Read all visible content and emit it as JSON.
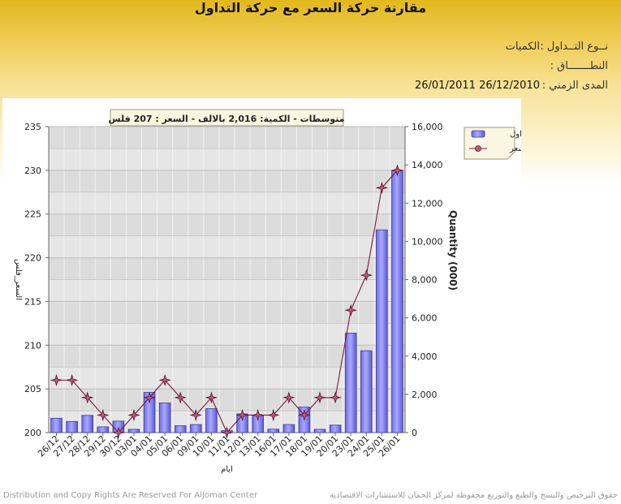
{
  "page": {
    "title": "مقارنة حركة السعر مع حركة التداول",
    "info": [
      {
        "key": "نــوع التــداول :",
        "value": "الكميات"
      },
      {
        "key": "النطـــــــاق :",
        "value": ""
      },
      {
        "key": "المدى الزمني :",
        "value": "26/12/2010 26/01/2011"
      }
    ],
    "footer_left": "Distribution and Copy Rights Are Reserved For AlJoman Center",
    "footer_right": "حقوق الترخيص والنسخ والطبع والتوزيع محفوظة لمركز الجمان للاستشارات الاقتصادية"
  },
  "chart_data": {
    "type": "bar",
    "annotation": "متوسطات - الكمية: 2,016 بالالف  - السعر : 207 فلس",
    "categories": [
      "26/12",
      "27/12",
      "28/12",
      "29/12",
      "30/12",
      "03/01",
      "04/01",
      "05/01",
      "06/01",
      "09/01",
      "10/01",
      "11/01",
      "12/01",
      "13/01",
      "16/01",
      "17/01",
      "18/01",
      "19/01",
      "20/01",
      "23/01",
      "24/01",
      "25/01",
      "26/01"
    ],
    "xlabel": "ايام",
    "ylabel_left": "السعر_فلس",
    "ylabel_right": "Quantity (000)",
    "ylim_left": [
      200,
      235
    ],
    "yticks_left": [
      200,
      205,
      210,
      215,
      220,
      225,
      230,
      235
    ],
    "ylim_right": [
      0,
      16000
    ],
    "yticks_right": [
      "0",
      "2,000",
      "4,000",
      "6,000",
      "8,000",
      "10,000",
      "12,000",
      "14,000",
      "16,000"
    ],
    "grid": true,
    "legend_position": "top-right",
    "series": [
      {
        "name": "تداول",
        "type": "bar",
        "axis": "right",
        "color": "#8080ee",
        "values": [
          750,
          580,
          900,
          300,
          600,
          170,
          2100,
          1550,
          360,
          420,
          1250,
          100,
          980,
          900,
          180,
          420,
          1330,
          170,
          390,
          5200,
          4280,
          10600,
          13700
        ]
      },
      {
        "name": "السعر",
        "type": "line",
        "axis": "left",
        "color": "#7a1a3a",
        "values": [
          206,
          206,
          204,
          202,
          200,
          202,
          204,
          206,
          204,
          202,
          204,
          200,
          202,
          202,
          202,
          204,
          202,
          204,
          204,
          214,
          218,
          228,
          230
        ]
      }
    ]
  }
}
